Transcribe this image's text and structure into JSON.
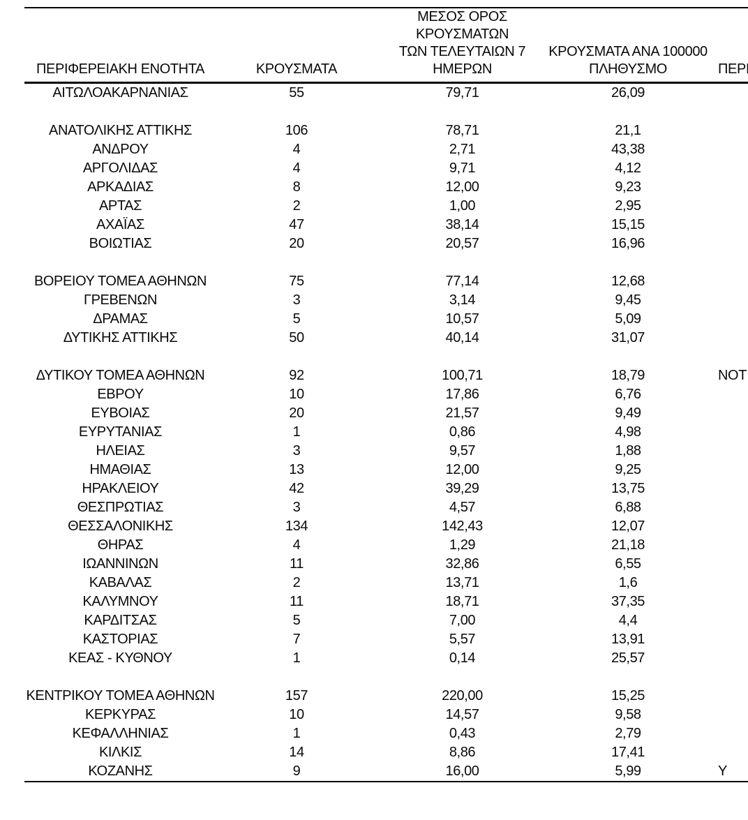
{
  "table": {
    "headers": {
      "regional_unit": "ΠΕΡΙΦΕΡΕΙΑΚΗ ΕΝΟΤΗΤΑ",
      "cases": "ΚΡΟΥΣΜΑΤΑ",
      "avg_7day": "ΜΕΣΟΣ ΟΡΟΣ ΚΡΟΥΣΜΑΤΩΝ\nΤΩΝ ΤΕΛΕΥΤΑΙΩΝ 7\nΗΜΕΡΩΝ",
      "per_100k": "ΚΡΟΥΣΜΑΤΑ ΑΝΑ 100000\nΠΛΗΘΥΣΜΟ",
      "cutoff_column": "ΠΕΡΙ"
    },
    "rows": [
      {
        "region": "ΑΙΤΩΛΟΑΚΑΡΝΑΝΙΑΣ",
        "cases": "55",
        "avg_7day": "79,71",
        "per_100k": "26,09",
        "cutoff": ""
      },
      {
        "spacer": true
      },
      {
        "region": "ΑΝΑΤΟΛΙΚΗΣ ΑΤΤΙΚΗΣ",
        "cases": "106",
        "avg_7day": "78,71",
        "per_100k": "21,1",
        "cutoff": ""
      },
      {
        "region": "ΑΝΔΡΟΥ",
        "cases": "4",
        "avg_7day": "2,71",
        "per_100k": "43,38",
        "cutoff": ""
      },
      {
        "region": "ΑΡΓΟΛΙΔΑΣ",
        "cases": "4",
        "avg_7day": "9,71",
        "per_100k": "4,12",
        "cutoff": ""
      },
      {
        "region": "ΑΡΚΑΔΙΑΣ",
        "cases": "8",
        "avg_7day": "12,00",
        "per_100k": "9,23",
        "cutoff": ""
      },
      {
        "region": "ΑΡΤΑΣ",
        "cases": "2",
        "avg_7day": "1,00",
        "per_100k": "2,95",
        "cutoff": ""
      },
      {
        "region": "ΑΧΑΪΑΣ",
        "cases": "47",
        "avg_7day": "38,14",
        "per_100k": "15,15",
        "cutoff": ""
      },
      {
        "region": "ΒΟΙΩΤΙΑΣ",
        "cases": "20",
        "avg_7day": "20,57",
        "per_100k": "16,96",
        "cutoff": ""
      },
      {
        "spacer": true
      },
      {
        "region": "ΒΟΡΕΙΟΥ ΤΟΜΕΑ ΑΘΗΝΩΝ",
        "cases": "75",
        "avg_7day": "77,14",
        "per_100k": "12,68",
        "cutoff": ""
      },
      {
        "region": "ΓΡΕΒΕΝΩΝ",
        "cases": "3",
        "avg_7day": "3,14",
        "per_100k": "9,45",
        "cutoff": ""
      },
      {
        "region": "ΔΡΑΜΑΣ",
        "cases": "5",
        "avg_7day": "10,57",
        "per_100k": "5,09",
        "cutoff": ""
      },
      {
        "region": "ΔΥΤΙΚΗΣ ΑΤΤΙΚΗΣ",
        "cases": "50",
        "avg_7day": "40,14",
        "per_100k": "31,07",
        "cutoff": ""
      },
      {
        "spacer": true
      },
      {
        "region": "ΔΥΤΙΚΟΥ ΤΟΜΕΑ ΑΘΗΝΩΝ",
        "cases": "92",
        "avg_7day": "100,71",
        "per_100k": "18,79",
        "cutoff": "ΝΟΤ"
      },
      {
        "region": "ΕΒΡΟΥ",
        "cases": "10",
        "avg_7day": "17,86",
        "per_100k": "6,76",
        "cutoff": ""
      },
      {
        "region": "ΕΥΒΟΙΑΣ",
        "cases": "20",
        "avg_7day": "21,57",
        "per_100k": "9,49",
        "cutoff": ""
      },
      {
        "region": "ΕΥΡΥΤΑΝΙΑΣ",
        "cases": "1",
        "avg_7day": "0,86",
        "per_100k": "4,98",
        "cutoff": ""
      },
      {
        "region": "ΗΛΕΙΑΣ",
        "cases": "3",
        "avg_7day": "9,57",
        "per_100k": "1,88",
        "cutoff": ""
      },
      {
        "region": "ΗΜΑΘΙΑΣ",
        "cases": "13",
        "avg_7day": "12,00",
        "per_100k": "9,25",
        "cutoff": ""
      },
      {
        "region": "ΗΡΑΚΛΕΙΟΥ",
        "cases": "42",
        "avg_7day": "39,29",
        "per_100k": "13,75",
        "cutoff": ""
      },
      {
        "region": "ΘΕΣΠΡΩΤΙΑΣ",
        "cases": "3",
        "avg_7day": "4,57",
        "per_100k": "6,88",
        "cutoff": ""
      },
      {
        "region": "ΘΕΣΣΑΛΟΝΙΚΗΣ",
        "cases": "134",
        "avg_7day": "142,43",
        "per_100k": "12,07",
        "cutoff": ""
      },
      {
        "region": "ΘΗΡΑΣ",
        "cases": "4",
        "avg_7day": "1,29",
        "per_100k": "21,18",
        "cutoff": ""
      },
      {
        "region": "ΙΩΑΝΝΙΝΩΝ",
        "cases": "11",
        "avg_7day": "32,86",
        "per_100k": "6,55",
        "cutoff": ""
      },
      {
        "region": "ΚΑΒΑΛΑΣ",
        "cases": "2",
        "avg_7day": "13,71",
        "per_100k": "1,6",
        "cutoff": ""
      },
      {
        "region": "ΚΑΛΥΜΝΟΥ",
        "cases": "11",
        "avg_7day": "18,71",
        "per_100k": "37,35",
        "cutoff": ""
      },
      {
        "region": "ΚΑΡΔΙΤΣΑΣ",
        "cases": "5",
        "avg_7day": "7,00",
        "per_100k": "4,4",
        "cutoff": ""
      },
      {
        "region": "ΚΑΣΤΟΡΙΑΣ",
        "cases": "7",
        "avg_7day": "5,57",
        "per_100k": "13,91",
        "cutoff": ""
      },
      {
        "region": "ΚΕΑΣ - ΚΥΘΝΟΥ",
        "cases": "1",
        "avg_7day": "0,14",
        "per_100k": "25,57",
        "cutoff": ""
      },
      {
        "spacer": true
      },
      {
        "region": "ΚΕΝΤΡΙΚΟΥ ΤΟΜΕΑ ΑΘΗΝΩΝ",
        "cases": "157",
        "avg_7day": "220,00",
        "per_100k": "15,25",
        "cutoff": ""
      },
      {
        "region": "ΚΕΡΚΥΡΑΣ",
        "cases": "10",
        "avg_7day": "14,57",
        "per_100k": "9,58",
        "cutoff": ""
      },
      {
        "region": "ΚΕΦΑΛΛΗΝΙΑΣ",
        "cases": "1",
        "avg_7day": "0,43",
        "per_100k": "2,79",
        "cutoff": ""
      },
      {
        "region": "ΚΙΛΚΙΣ",
        "cases": "14",
        "avg_7day": "8,86",
        "per_100k": "17,41",
        "cutoff": ""
      },
      {
        "region": "ΚΟΖΑΝΗΣ",
        "cases": "9",
        "avg_7day": "16,00",
        "per_100k": "5,99",
        "cutoff": "Υ"
      }
    ]
  }
}
